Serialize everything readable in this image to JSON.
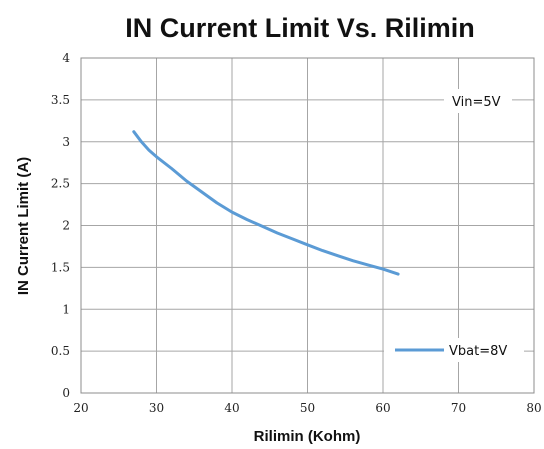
{
  "chart_data": {
    "type": "line",
    "title": "IN Current Limit Vs. Rilimin",
    "xlabel": "Rilimin (Kohm)",
    "ylabel": "IN Current Limit (A)",
    "xlim": [
      20,
      80
    ],
    "ylim": [
      0,
      4
    ],
    "x_ticks": [
      "20",
      "30",
      "40",
      "50",
      "60",
      "70",
      "80"
    ],
    "y_ticks": [
      "0",
      "0.5",
      "1",
      "1.5",
      "2",
      "2.5",
      "3",
      "3.5",
      "4"
    ],
    "grid": true,
    "legend_position": "bottom-right",
    "annotation": "Vin=5V",
    "series": [
      {
        "name": "Vbat=8V",
        "color": "#5b9bd5",
        "x": [
          27,
          28,
          29,
          30,
          32,
          34,
          36,
          38,
          40,
          42,
          44,
          46,
          48,
          50,
          52,
          54,
          56,
          58,
          60,
          62
        ],
        "y": [
          3.12,
          3.0,
          2.9,
          2.82,
          2.68,
          2.53,
          2.4,
          2.27,
          2.16,
          2.07,
          1.99,
          1.91,
          1.84,
          1.77,
          1.7,
          1.64,
          1.58,
          1.53,
          1.48,
          1.42
        ]
      }
    ]
  }
}
